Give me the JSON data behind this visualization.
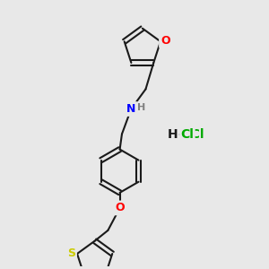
{
  "background_color": "#e8e8e8",
  "bond_color": "#1a1a1a",
  "bond_width": 1.5,
  "atom_colors": {
    "O": "#ff0000",
    "N": "#0000ff",
    "S": "#cccc00",
    "H": "#808080",
    "C": "#1a1a1a"
  },
  "font_size": 9,
  "hcl_color": "#00aa00"
}
